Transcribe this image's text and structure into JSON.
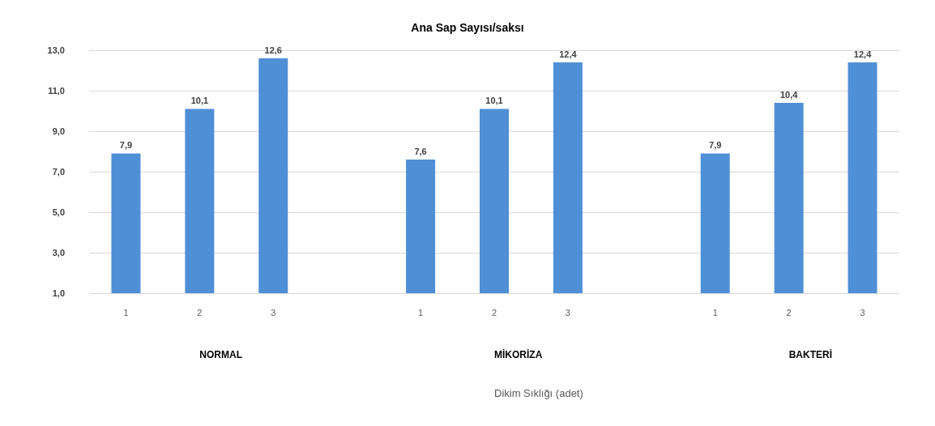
{
  "chart_data": {
    "type": "bar",
    "title": "Ana Sap Sayısı/saksı",
    "categories": [
      "1",
      "2",
      "3",
      null,
      "1",
      "2",
      "3",
      null,
      "1",
      "2",
      "3"
    ],
    "values": [
      7.9,
      10.1,
      12.6,
      null,
      7.6,
      10.1,
      12.4,
      null,
      7.9,
      10.4,
      12.4
    ],
    "value_labels": [
      "7,9",
      "10,1",
      "12,6",
      null,
      "7,6",
      "10,1",
      "12,4",
      null,
      "7,9",
      "10,4",
      "12,4"
    ],
    "color": "#4f8fd6",
    "ylim": [
      1,
      13
    ],
    "yticks": [
      {
        "value": 1,
        "label": "1,0"
      },
      {
        "value": 3,
        "label": "3,0"
      },
      {
        "value": 5,
        "label": "5,0"
      },
      {
        "value": 7,
        "label": "7,0"
      },
      {
        "value": 9,
        "label": "9,0"
      },
      {
        "value": 11,
        "label": "11,0"
      },
      {
        "value": 13,
        "label": "13,0"
      }
    ],
    "grid": true,
    "annotations": [
      "NORMAL",
      "MİKORİZA",
      "BAKTERİ",
      "Dikim Sıklığı (adet)"
    ]
  }
}
